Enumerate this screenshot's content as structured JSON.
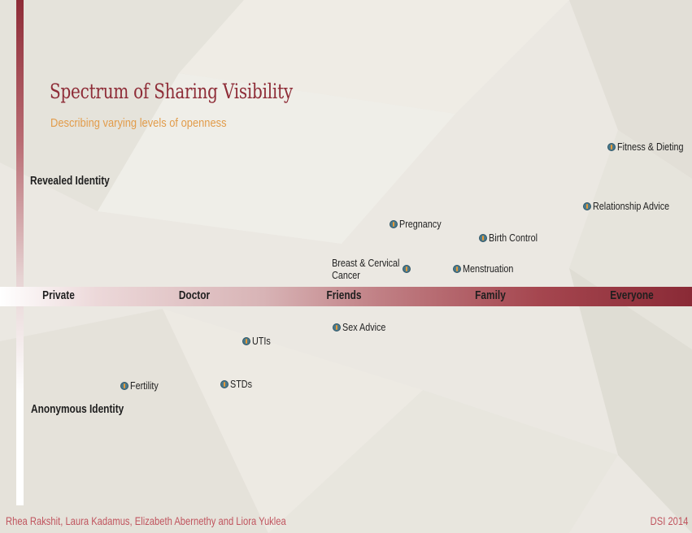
{
  "chart_data": {
    "type": "scatter",
    "title": "Spectrum of Sharing Visibility",
    "subtitle": "Describing varying levels of openness",
    "y_axis": {
      "top_label": "Revealed Identity",
      "bottom_label": "Anonymous Identity"
    },
    "x_axis": {
      "categories": [
        "Private",
        "Doctor",
        "Friends",
        "Family",
        "Everyone"
      ],
      "range": [
        0,
        4
      ]
    },
    "y_range": [
      -1.2,
      1.5
    ],
    "points": [
      {
        "label": "Fitness & Dieting",
        "x": 3.86,
        "y": 1.28,
        "label_side": "right"
      },
      {
        "label": "Relationship Advice",
        "x": 3.69,
        "y": 0.77,
        "label_side": "right"
      },
      {
        "label": "Pregnancy",
        "x": 2.34,
        "y": 0.62,
        "label_side": "right"
      },
      {
        "label": "Birth Control",
        "x": 2.96,
        "y": 0.5,
        "label_side": "right"
      },
      {
        "label": "Breast & Cervical Cancer",
        "x": 2.43,
        "y": 0.24,
        "label_side": "left"
      },
      {
        "label": "Menstruation",
        "x": 2.78,
        "y": 0.24,
        "label_side": "right"
      },
      {
        "label": "Sex Advice",
        "x": 1.94,
        "y": -0.3,
        "label_side": "right"
      },
      {
        "label": "UTIs",
        "x": 1.31,
        "y": -0.44,
        "label_side": "right"
      },
      {
        "label": "Fertility",
        "x": 0.46,
        "y": -0.88,
        "label_side": "right"
      },
      {
        "label": "STDs",
        "x": 1.16,
        "y": -0.86,
        "label_side": "right"
      }
    ],
    "colors": {
      "accent": "#8e2c37",
      "subtitle": "#e29c4b",
      "point": "#4a7a8c",
      "point_mark": "#e89a38",
      "footer": "#c0545e"
    }
  },
  "footer": {
    "authors": "Rhea Rakshit, Laura Kadamus, Elizabeth Abernethy and Liora Yuklea",
    "event": "DSI 2014"
  }
}
